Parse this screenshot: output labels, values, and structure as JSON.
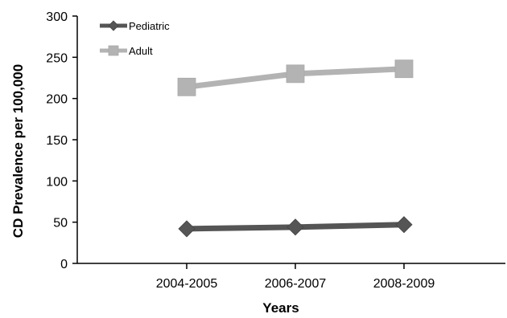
{
  "chart_data": {
    "type": "line",
    "categories": [
      "2004-2005",
      "2006-2007",
      "2008-2009"
    ],
    "series": [
      {
        "name": "Pediatric",
        "values": [
          42,
          44,
          47
        ],
        "color": "#555555",
        "marker": "diamond"
      },
      {
        "name": "Adult",
        "values": [
          214,
          230,
          236
        ],
        "color": "#b3b3b3",
        "marker": "square"
      }
    ],
    "xlabel": "Years",
    "ylabel": "CD Prevalence per 100,000",
    "ylim": [
      0,
      300
    ],
    "yticks": [
      0,
      50,
      100,
      150,
      200,
      250,
      300
    ],
    "grid": false,
    "legend": "top-left"
  }
}
